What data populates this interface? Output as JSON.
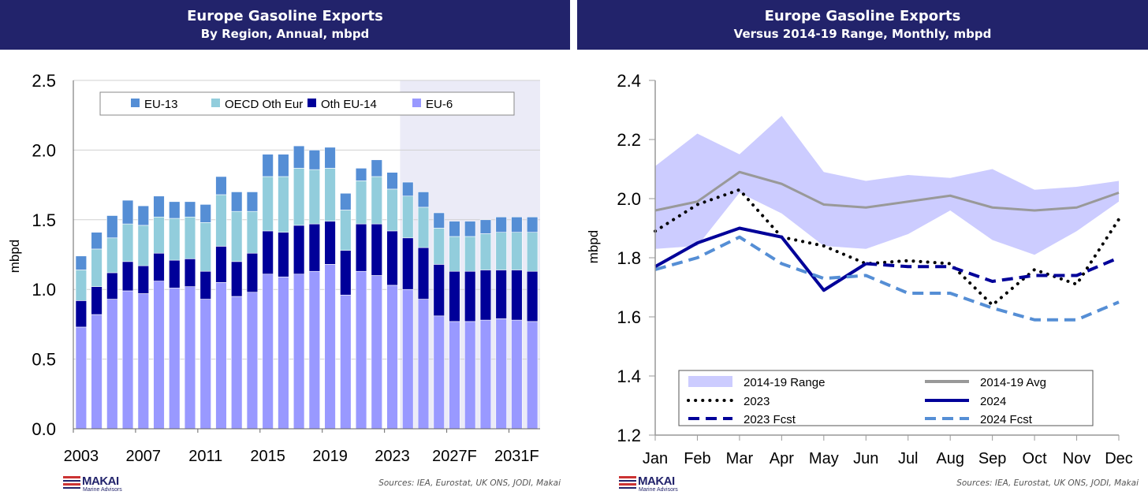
{
  "left": {
    "title": "Europe Gasoline Exports",
    "subtitle": "By Region, Annual, mbpd",
    "sources": "Sources: IEA, Eurostat, UK ONS, JODI, Makai",
    "logo": {
      "name": "MAKAI",
      "sub": "Marine Advisors"
    }
  },
  "right": {
    "title": "Europe Gasoline Exports",
    "subtitle": "Versus 2014-19 Range, Monthly, mbpd",
    "sources": "Sources: IEA, Eurostat, UK ONS, JODI, Makai",
    "logo": {
      "name": "MAKAI",
      "sub": "Marine Advisors"
    }
  },
  "chart_data": [
    {
      "type": "bar",
      "stacked": true,
      "title": "Europe Gasoline Exports",
      "subtitle": "By Region, Annual, mbpd",
      "ylabel": "mbpd",
      "ylim": [
        0,
        2.5
      ],
      "yticks": [
        "0.0",
        "0.5",
        "1.0",
        "1.5",
        "2.0",
        "2.5"
      ],
      "categories": [
        "2003",
        "2004",
        "2005",
        "2006",
        "2007",
        "2008",
        "2009",
        "2010",
        "2011",
        "2012",
        "2013",
        "2014",
        "2015",
        "2016",
        "2017",
        "2018",
        "2019",
        "2020",
        "2021",
        "2022",
        "2023",
        "2024",
        "2025",
        "2026",
        "2027F",
        "2028F",
        "2029F",
        "2030F",
        "2031F",
        "2032F"
      ],
      "xtick_labels": [
        "2003",
        "2007",
        "2011",
        "2015",
        "2019",
        "2023",
        "2027F",
        "2031F"
      ],
      "forecast_shading_from": "2024",
      "legend_position": "top",
      "series": [
        {
          "name": "EU-6",
          "color": "#9999ff",
          "values": [
            0.73,
            0.82,
            0.93,
            0.99,
            0.97,
            1.06,
            1.01,
            1.02,
            0.93,
            1.05,
            0.95,
            0.98,
            1.11,
            1.09,
            1.11,
            1.13,
            1.18,
            0.96,
            1.13,
            1.1,
            1.03,
            1.0,
            0.93,
            0.81,
            0.77,
            0.77,
            0.78,
            0.79,
            0.78,
            0.77
          ]
        },
        {
          "name": "Oth EU-14",
          "color": "#000099",
          "values": [
            0.19,
            0.2,
            0.19,
            0.21,
            0.2,
            0.2,
            0.2,
            0.2,
            0.2,
            0.26,
            0.25,
            0.28,
            0.31,
            0.32,
            0.35,
            0.34,
            0.31,
            0.32,
            0.34,
            0.37,
            0.39,
            0.37,
            0.37,
            0.37,
            0.36,
            0.36,
            0.36,
            0.35,
            0.36,
            0.36
          ]
        },
        {
          "name": "OECD Oth Eur",
          "color": "#92cddc",
          "values": [
            0.22,
            0.27,
            0.25,
            0.27,
            0.29,
            0.26,
            0.3,
            0.3,
            0.35,
            0.37,
            0.36,
            0.3,
            0.39,
            0.4,
            0.41,
            0.39,
            0.38,
            0.29,
            0.31,
            0.34,
            0.3,
            0.3,
            0.29,
            0.26,
            0.25,
            0.25,
            0.26,
            0.27,
            0.27,
            0.28
          ]
        },
        {
          "name": "EU-13",
          "color": "#558ed5",
          "values": [
            0.1,
            0.12,
            0.16,
            0.17,
            0.14,
            0.15,
            0.12,
            0.11,
            0.13,
            0.13,
            0.14,
            0.14,
            0.16,
            0.16,
            0.16,
            0.14,
            0.15,
            0.12,
            0.09,
            0.12,
            0.12,
            0.1,
            0.11,
            0.11,
            0.11,
            0.11,
            0.1,
            0.11,
            0.11,
            0.11
          ]
        }
      ],
      "legend_order": [
        "EU-13",
        "OECD Oth Eur",
        "Oth EU-14",
        "EU-6"
      ]
    },
    {
      "type": "line",
      "title": "Europe Gasoline Exports",
      "subtitle": "Versus 2014-19 Range, Monthly, mbpd",
      "ylabel": "mbpd",
      "ylim": [
        1.2,
        2.4
      ],
      "yticks": [
        "1.2",
        "1.4",
        "1.6",
        "1.8",
        "2.0",
        "2.2",
        "2.4"
      ],
      "categories": [
        "Jan",
        "Feb",
        "Mar",
        "Apr",
        "May",
        "Jun",
        "Jul",
        "Aug",
        "Sep",
        "Oct",
        "Nov",
        "Dec"
      ],
      "legend_position": "bottom",
      "range": {
        "name": "2014-19 Range",
        "color": "#ccccff",
        "high": [
          2.11,
          2.22,
          2.15,
          2.28,
          2.09,
          2.06,
          2.08,
          2.07,
          2.1,
          2.03,
          2.04,
          2.06
        ],
        "low": [
          1.83,
          1.84,
          2.02,
          1.95,
          1.84,
          1.83,
          1.88,
          1.96,
          1.86,
          1.81,
          1.89,
          1.99
        ]
      },
      "series": [
        {
          "name": "2014-19 Avg",
          "color": "#999999",
          "style": "solid",
          "values": [
            1.96,
            1.99,
            2.09,
            2.05,
            1.98,
            1.97,
            1.99,
            2.01,
            1.97,
            1.96,
            1.97,
            2.02
          ]
        },
        {
          "name": "2023",
          "color": "#000000",
          "style": "dotted",
          "values": [
            1.89,
            1.98,
            2.03,
            1.87,
            1.84,
            1.78,
            1.79,
            1.78,
            1.64,
            1.76,
            1.71,
            1.93
          ]
        },
        {
          "name": "2024",
          "color": "#000099",
          "style": "solid",
          "values": [
            1.77,
            1.85,
            1.9,
            1.87,
            1.69,
            1.78,
            null,
            null,
            null,
            null,
            null,
            null
          ]
        },
        {
          "name": "2023 Fcst",
          "color": "#000099",
          "style": "dashed",
          "values": [
            null,
            null,
            null,
            null,
            null,
            1.78,
            1.77,
            1.77,
            1.72,
            1.74,
            1.74,
            1.8
          ]
        },
        {
          "name": "2024 Fcst",
          "color": "#558ed5",
          "style": "dashed",
          "values": [
            1.76,
            1.8,
            1.87,
            1.78,
            1.73,
            1.74,
            1.68,
            1.68,
            1.63,
            1.59,
            1.59,
            1.65
          ]
        }
      ]
    }
  ]
}
